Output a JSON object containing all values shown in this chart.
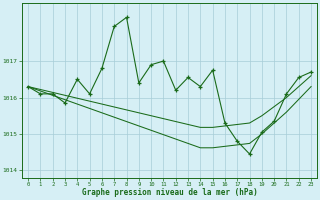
{
  "xlabel": "Graphe pression niveau de la mer (hPa)",
  "x": [
    0,
    1,
    2,
    3,
    4,
    5,
    6,
    7,
    8,
    9,
    10,
    11,
    12,
    13,
    14,
    15,
    16,
    17,
    18,
    19,
    20,
    21,
    22,
    23
  ],
  "zigzag": [
    1016.3,
    1016.1,
    1016.1,
    1015.85,
    1016.5,
    1016.1,
    1016.8,
    1017.95,
    1018.2,
    1016.4,
    1016.9,
    1017.0,
    1016.2,
    1016.55,
    1016.3,
    1016.75,
    1015.3,
    1014.8,
    1014.45,
    1015.05,
    1015.35,
    1016.1,
    1016.55,
    1016.7
  ],
  "trend_upper": [
    1016.3,
    1016.22,
    1016.14,
    1016.06,
    1015.98,
    1015.9,
    1015.82,
    1015.74,
    1015.66,
    1015.58,
    1015.5,
    1015.42,
    1015.34,
    1015.26,
    1015.18,
    1015.18,
    1015.22,
    1015.26,
    1015.3,
    1015.5,
    1015.75,
    1016.0,
    1016.3,
    1016.6
  ],
  "trend_lower": [
    1016.3,
    1016.18,
    1016.06,
    1015.94,
    1015.82,
    1015.7,
    1015.58,
    1015.46,
    1015.34,
    1015.22,
    1015.1,
    1014.98,
    1014.86,
    1014.74,
    1014.62,
    1014.62,
    1014.66,
    1014.7,
    1014.74,
    1015.0,
    1015.3,
    1015.6,
    1015.95,
    1016.3
  ],
  "ylim": [
    1013.8,
    1018.6
  ],
  "yticks": [
    1014,
    1015,
    1016,
    1017
  ],
  "line_color": "#1a6b1a",
  "bg_color": "#d6eff5",
  "grid_color": "#a8cdd8"
}
